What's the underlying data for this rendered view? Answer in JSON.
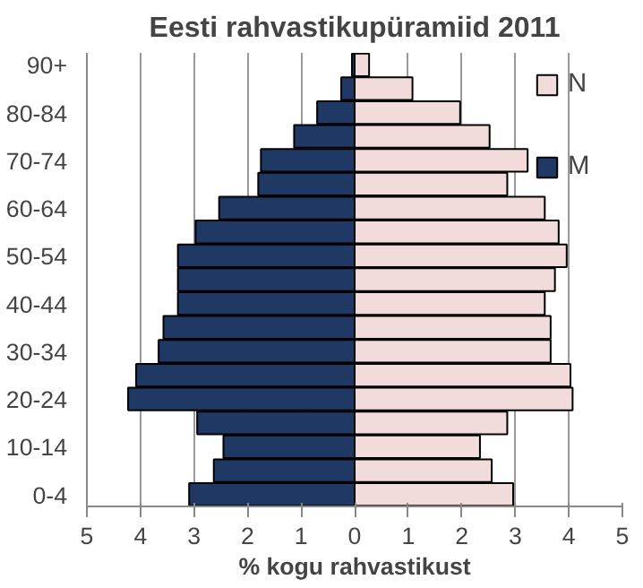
{
  "chart_data": {
    "type": "bar",
    "orientation": "horizontal",
    "stacked": true,
    "title": "Eesti rahvastikupüramiid 2011",
    "xlabel": "% kogu rahvastikust",
    "categories": [
      "90+",
      null,
      "80-84",
      null,
      "70-74",
      null,
      "60-64",
      null,
      "50-54",
      null,
      "40-44",
      null,
      "30-34",
      null,
      "20-24",
      null,
      "10-14",
      null,
      "0-4"
    ],
    "series": [
      {
        "name": "N",
        "color": "#f2dcdb",
        "values": [
          0.27,
          1.08,
          1.97,
          2.52,
          3.23,
          2.85,
          3.55,
          3.81,
          3.96,
          3.74,
          3.55,
          3.66,
          3.66,
          4.03,
          4.07,
          2.85,
          2.34,
          2.56,
          2.96
        ]
      },
      {
        "name": "M",
        "color": "#1f3864",
        "values": [
          -0.05,
          -0.25,
          -0.7,
          -1.13,
          -1.75,
          -1.8,
          -2.53,
          -2.97,
          -3.3,
          -3.3,
          -3.3,
          -3.57,
          -3.66,
          -4.08,
          -4.23,
          -2.94,
          -2.45,
          -2.63,
          -3.09
        ]
      }
    ],
    "xlim": [
      -5,
      5
    ],
    "xticks": [
      {
        "value": -5,
        "label": "5"
      },
      {
        "value": -4,
        "label": "4"
      },
      {
        "value": -3,
        "label": "3"
      },
      {
        "value": -2,
        "label": "2"
      },
      {
        "value": -1,
        "label": "1"
      },
      0,
      1,
      2,
      3,
      4,
      5
    ],
    "grid": "x",
    "legend": "top right"
  }
}
